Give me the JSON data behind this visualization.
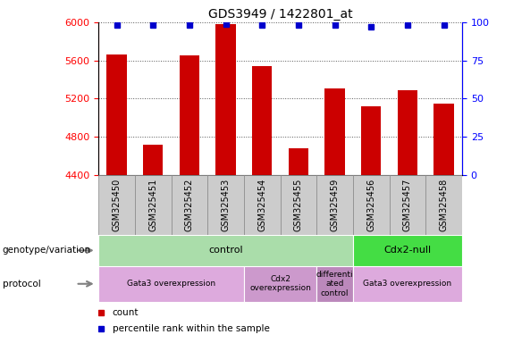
{
  "title": "GDS3949 / 1422801_at",
  "samples": [
    "GSM325450",
    "GSM325451",
    "GSM325452",
    "GSM325453",
    "GSM325454",
    "GSM325455",
    "GSM325459",
    "GSM325456",
    "GSM325457",
    "GSM325458"
  ],
  "counts": [
    5660,
    4720,
    5650,
    5980,
    5540,
    4680,
    5310,
    5120,
    5290,
    5150
  ],
  "percentile_ranks": [
    98,
    98,
    98,
    99,
    98,
    98,
    98,
    97,
    98,
    98
  ],
  "ylim_left": [
    4400,
    6000
  ],
  "ylim_right": [
    0,
    100
  ],
  "yticks_left": [
    4400,
    4800,
    5200,
    5600,
    6000
  ],
  "yticks_right": [
    0,
    25,
    50,
    75,
    100
  ],
  "bar_color": "#cc0000",
  "dot_color": "#0000cc",
  "genotype_groups": [
    {
      "label": "control",
      "start": 0,
      "end": 7,
      "color": "#aaddaa"
    },
    {
      "label": "Cdx2-null",
      "start": 7,
      "end": 10,
      "color": "#44dd44"
    }
  ],
  "protocol_groups": [
    {
      "label": "Gata3 overexpression",
      "start": 0,
      "end": 4,
      "color": "#ddaadd"
    },
    {
      "label": "Cdx2\noverexpression",
      "start": 4,
      "end": 6,
      "color": "#cc99cc"
    },
    {
      "label": "differenti\nated\ncontrol",
      "start": 6,
      "end": 7,
      "color": "#bb88bb"
    },
    {
      "label": "Gata3 overexpression",
      "start": 7,
      "end": 10,
      "color": "#ddaadd"
    }
  ],
  "legend_items": [
    {
      "label": "count",
      "color": "#cc0000"
    },
    {
      "label": "percentile rank within the sample",
      "color": "#0000cc"
    }
  ],
  "left_labels": [
    "genotype/variation",
    "protocol"
  ],
  "bg_color": "#ffffff",
  "tick_box_color": "#cccccc",
  "tick_box_border": "#888888"
}
